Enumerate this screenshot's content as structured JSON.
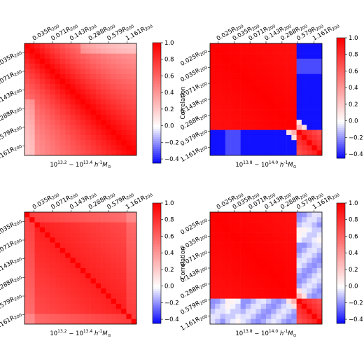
{
  "chart_data": [
    {
      "type": "heatmap",
      "panel": "top-left",
      "title": "",
      "xlabel": "10^{13.2} − 10^{13.4} h^{-1} M_⊙",
      "ylabel": "",
      "tick_labels": [
        "0.035R200",
        "0.071R200",
        "0.143R200",
        "0.288R200",
        "0.579R200",
        "1.161R200"
      ],
      "colorbar": {
        "label": "Correlation",
        "ticks": [
          "1.0",
          "0.8",
          "0.6",
          "0.4",
          "0.2",
          "0.0",
          "−0.2",
          "−0.4"
        ],
        "range": [
          -0.45,
          1.0
        ]
      },
      "pattern": "diagonal-decay",
      "params": {
        "diag_offset": 1.0,
        "decay": 0.05
      }
    },
    {
      "type": "heatmap",
      "panel": "top-right",
      "title": "",
      "xlabel": "10^{13.8} − 10^{14.0} h^{-1} M_⊙",
      "ylabel": "",
      "tick_labels": [
        "0.025R200",
        "0.035R200",
        "0.071R200",
        "0.143R200",
        "0.288R200",
        "0.579R200",
        "1.161R200"
      ],
      "colorbar": {
        "label": "Correlation",
        "ticks": [
          "1.0",
          "0.8",
          "0.6",
          "0.4",
          "0.2",
          "0.0",
          "−0.2",
          "−0.4"
        ],
        "range": [
          -0.45,
          1.0
        ]
      },
      "pattern": "block-anticorrelated",
      "params": {
        "inner_min": 0.85,
        "outer_value": -0.42,
        "boundary": 0.78
      }
    },
    {
      "type": "heatmap",
      "panel": "bottom-left",
      "title": "",
      "xlabel": "10^{13.2} − 10^{13.4} h^{-1} M_⊙",
      "ylabel": "",
      "tick_labels": [
        "0.035R200",
        "0.071R200",
        "0.143R200",
        "0.288R200",
        "0.579R200",
        "1.161R200"
      ],
      "colorbar": {
        "label": "Correlation",
        "ticks": [
          "1.0",
          "0.8",
          "0.6",
          "0.4",
          "0.2",
          "0.0",
          "−0.2",
          "−0.4"
        ],
        "range": [
          -0.45,
          1.0
        ]
      },
      "pattern": "high-uniform",
      "params": {
        "base": 0.88,
        "edge_drop": 0.2
      }
    },
    {
      "type": "heatmap",
      "panel": "bottom-right",
      "title": "",
      "xlabel": "10^{13.8} − 10^{14.0} h^{-1} M_⊙",
      "ylabel": "",
      "tick_labels": [
        "0.025R200",
        "0.035R200",
        "0.071R200",
        "0.143R200",
        "0.288R200",
        "0.579R200",
        "1.161R200"
      ],
      "colorbar": {
        "label": "Correlation",
        "ticks": [
          "1.0",
          "0.8",
          "0.6",
          "0.4",
          "0.2",
          "0.0",
          "−0.2",
          "−0.4"
        ],
        "range": [
          -0.45,
          1.0
        ]
      },
      "pattern": "block-weak",
      "params": {
        "inner_min": 0.9,
        "outer_value": -0.12,
        "boundary": 0.8
      }
    }
  ],
  "colors": {
    "high": "#ff0000",
    "mid": "#ffffff",
    "low": "#0000ff"
  }
}
